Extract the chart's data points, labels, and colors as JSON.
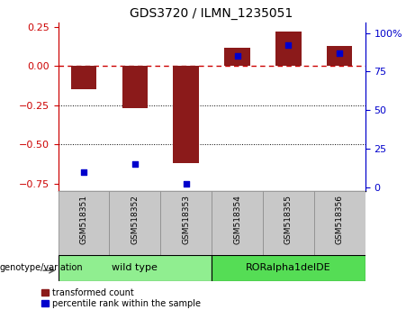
{
  "title": "GDS3720 / ILMN_1235051",
  "samples": [
    "GSM518351",
    "GSM518352",
    "GSM518353",
    "GSM518354",
    "GSM518355",
    "GSM518356"
  ],
  "red_values": [
    -0.15,
    -0.27,
    -0.62,
    0.12,
    0.22,
    0.13
  ],
  "blue_values": [
    10,
    15,
    2,
    85,
    92,
    87
  ],
  "ylim_left": [
    -0.8,
    0.28
  ],
  "ylim_right": [
    -2.8,
    107
  ],
  "yticks_left": [
    0.25,
    0.0,
    -0.25,
    -0.5,
    -0.75
  ],
  "yticks_right": [
    0,
    25,
    50,
    75,
    100
  ],
  "groups": [
    {
      "label": "wild type",
      "color": "#90EE90",
      "start": 0,
      "end": 2
    },
    {
      "label": "RORalpha1delDE",
      "color": "#55DD55",
      "start": 3,
      "end": 5
    }
  ],
  "group_label": "genotype/variation",
  "legend_red": "transformed count",
  "legend_blue": "percentile rank within the sample",
  "bar_color": "#8B1A1A",
  "blue_color": "#0000CC",
  "dashed_line_color": "#CC0000",
  "bg_color": "#FFFFFF",
  "title_fontsize": 10,
  "axis_left_color": "#CC0000",
  "axis_right_color": "#0000CC",
  "label_bg": "#C8C8C8",
  "bar_width": 0.5
}
